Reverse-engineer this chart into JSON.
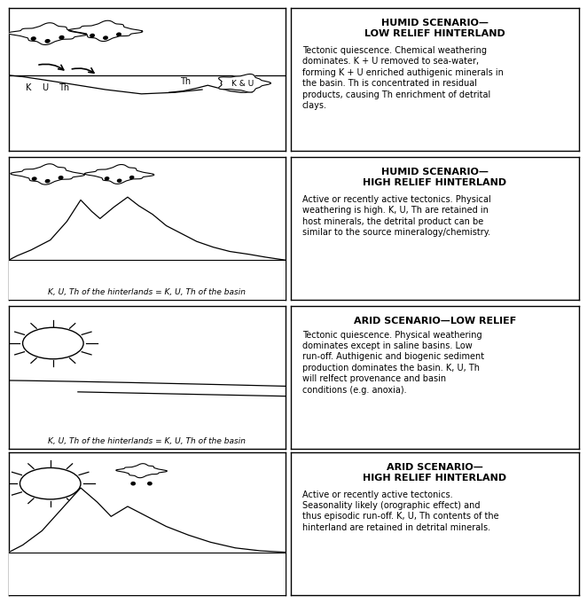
{
  "titles": [
    "HUMID SCENARIO—\nLOW RELIEF HINTERLAND",
    "HUMID SCENARIO—\nHIGH RELIEF HINTERLAND",
    "ARID SCENARIO—LOW RELIEF",
    "ARID SCENARIO—\nHIGH RELIEF HINTERLAND"
  ],
  "descriptions": [
    "Tectonic quiescence. Chemical weathering\ndominates. K + U removed to sea-water,\nforming K + U enriched authigenic minerals in\nthe basin. Th is concentrated in residual\nproducts, causing Th enrichment of detrital\nclays.",
    "Active or recently active tectonics. Physical\nweathering is high. K, U, Th are retained in\nhost minerals, the detrital product can be\nsimilar to the source mineralogy/chemistry.",
    "Tectonic quiescence. Physical weathering\ndominates except in saline basins. Low\nrun-off. Authigenic and biogenic sediment\nproduction dominates the basin. K, U, Th\nwill relfect provenance and basin\nconditions (e.g. anoxia).",
    "Active or recently active tectonics.\nSeasonality likely (orographic effect) and\nthus episodic run-off. K, U, Th contents of the\nhinterland are retained in detrital minerals."
  ],
  "bottom_labels": [
    "",
    "K, U, Th of the hinterlands = K, U, Th of the basin",
    "K, U, Th of the hinterlands = K, U, Th of the basin",
    ""
  ],
  "bg_color": "#ffffff",
  "border_color": "#000000"
}
